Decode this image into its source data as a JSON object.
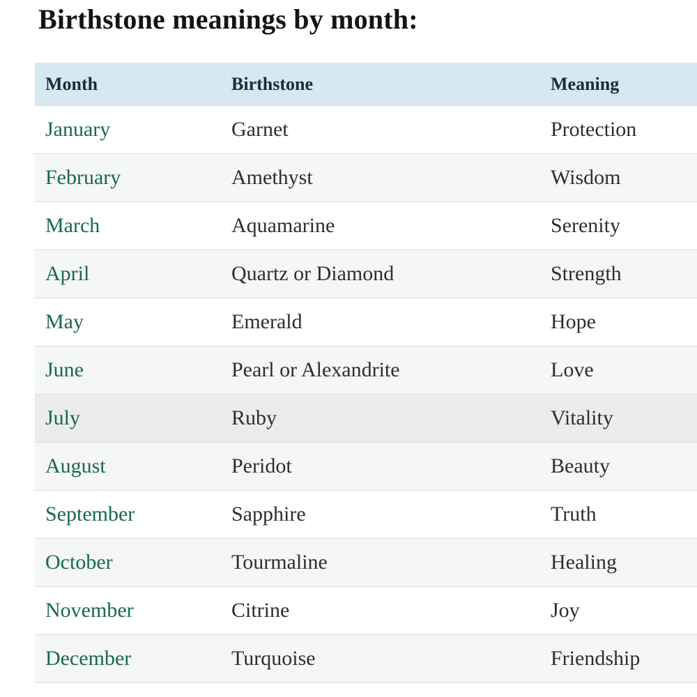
{
  "page": {
    "title": "Birthstone meanings by month:"
  },
  "colors": {
    "title_text": "#141414",
    "header_bg": "#d6e8f0",
    "header_text": "#1d2c36",
    "month_link_green": "#17694e",
    "body_text": "#2e2e2e",
    "row_stripe": "#f5f6f6",
    "row_highlight": "#ececec",
    "divider": "#dbdbdb",
    "page_bg": "#ffffff"
  },
  "table": {
    "columns": [
      "Month",
      "Birthstone",
      "Meaning"
    ],
    "rows": [
      {
        "month": "January",
        "birthstone": "Garnet",
        "meaning": "Protection"
      },
      {
        "month": "February",
        "birthstone": "Amethyst",
        "meaning": "Wisdom"
      },
      {
        "month": "March",
        "birthstone": "Aquamarine",
        "meaning": "Serenity"
      },
      {
        "month": "April",
        "birthstone": "Quartz or Diamond",
        "meaning": "Strength"
      },
      {
        "month": "May",
        "birthstone": "Emerald",
        "meaning": "Hope"
      },
      {
        "month": "June",
        "birthstone": "Pearl or Alexandrite",
        "meaning": "Love"
      },
      {
        "month": "July",
        "birthstone": "Ruby",
        "meaning": "Vitality",
        "highlighted": true
      },
      {
        "month": "August",
        "birthstone": "Peridot",
        "meaning": "Beauty"
      },
      {
        "month": "September",
        "birthstone": "Sapphire",
        "meaning": "Truth"
      },
      {
        "month": "October",
        "birthstone": "Tourmaline",
        "meaning": "Healing"
      },
      {
        "month": "November",
        "birthstone": "Citrine",
        "meaning": "Joy"
      },
      {
        "month": "December",
        "birthstone": "Turquoise",
        "meaning": "Friendship"
      }
    ]
  }
}
